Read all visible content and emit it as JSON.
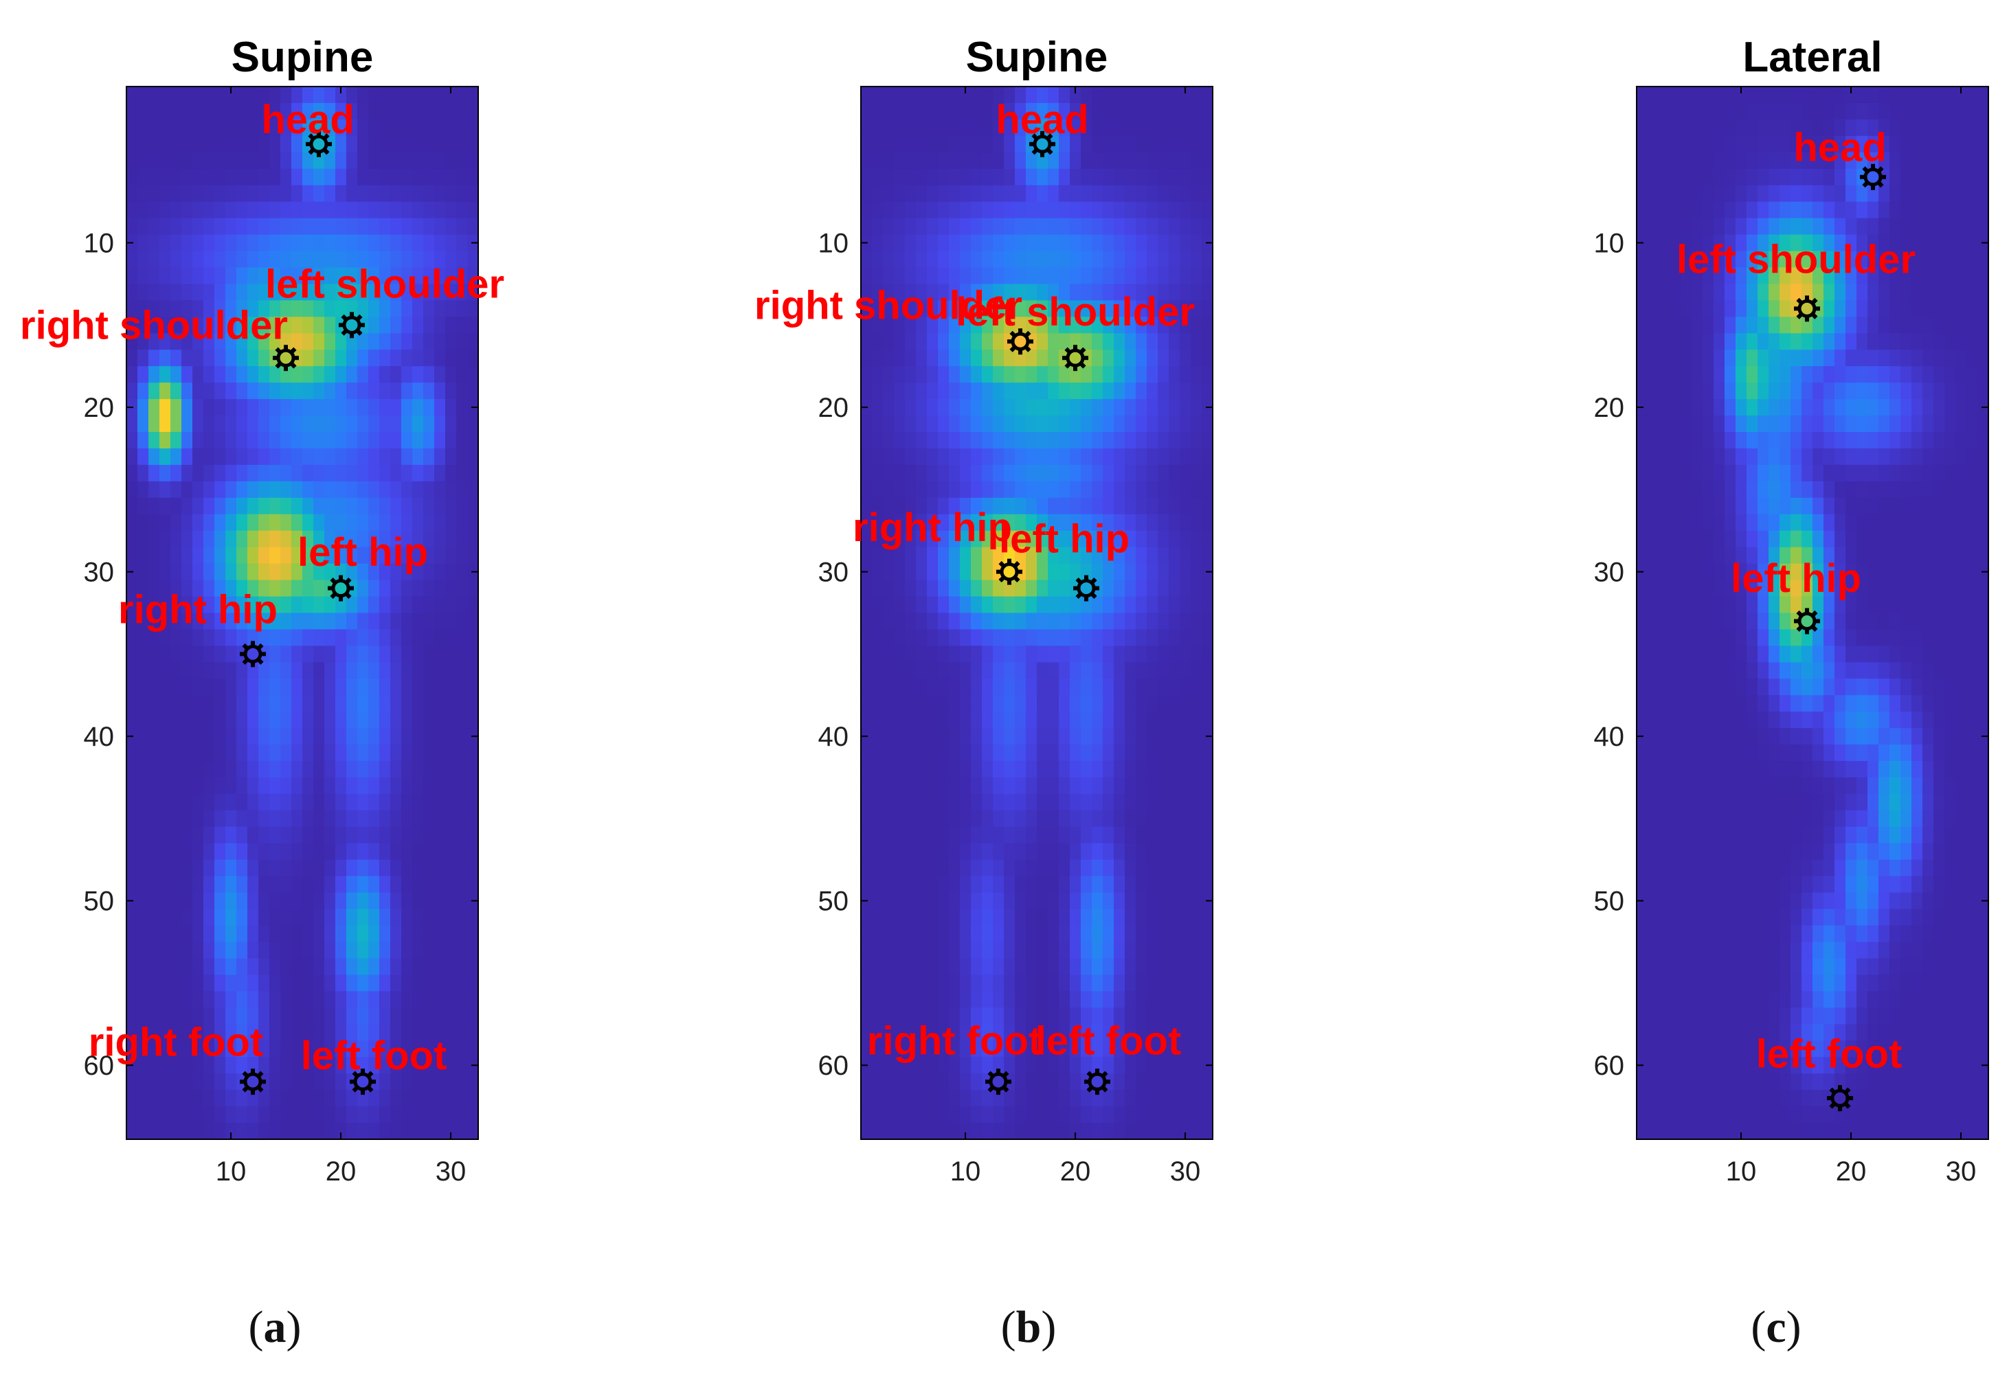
{
  "colors": {
    "low": "#3d26a8",
    "marker": "#000000",
    "label": "#ff0000",
    "axis": "#000000",
    "tick_text": "#1f1f1f"
  },
  "captions": {
    "a": "a",
    "b": "b",
    "c": "c"
  },
  "chart_data": [
    {
      "type": "heatmap",
      "title": "Supine",
      "xlim": [
        0.5,
        32.5
      ],
      "ylim": [
        0.5,
        64.5
      ],
      "y_direction": "reverse",
      "xticks": [
        10,
        20,
        30
      ],
      "yticks": [
        10,
        20,
        30,
        40,
        50,
        60
      ],
      "grid": false,
      "colormap": "parula",
      "pressure_regions": [
        {
          "x": 18,
          "y": 4,
          "sx": 1.6,
          "sy": 2.2,
          "v": 0.45
        },
        {
          "x": 18,
          "y": 11,
          "sx": 8,
          "sy": 2.2,
          "v": 0.3
        },
        {
          "x": 16,
          "y": 16,
          "sx": 4,
          "sy": 2.5,
          "v": 0.85
        },
        {
          "x": 20,
          "y": 14,
          "sx": 4,
          "sy": 2.5,
          "v": 0.5
        },
        {
          "x": 13,
          "y": 14,
          "sx": 3,
          "sy": 3,
          "v": 0.4
        },
        {
          "x": 4,
          "y": 20.5,
          "sx": 1.3,
          "sy": 2,
          "v": 0.95
        },
        {
          "x": 27,
          "y": 21,
          "sx": 1.5,
          "sy": 2.2,
          "v": 0.35
        },
        {
          "x": 18,
          "y": 21,
          "sx": 5,
          "sy": 2.5,
          "v": 0.3
        },
        {
          "x": 14,
          "y": 29,
          "sx": 3.5,
          "sy": 3,
          "v": 0.9
        },
        {
          "x": 18,
          "y": 31,
          "sx": 3.5,
          "sy": 1.8,
          "v": 0.6
        },
        {
          "x": 19,
          "y": 27,
          "sx": 5,
          "sy": 3,
          "v": 0.3
        },
        {
          "x": 14,
          "y": 38,
          "sx": 2,
          "sy": 5,
          "v": 0.22
        },
        {
          "x": 22,
          "y": 38,
          "sx": 2,
          "sy": 5,
          "v": 0.25
        },
        {
          "x": 10,
          "y": 51,
          "sx": 1.3,
          "sy": 3.5,
          "v": 0.33
        },
        {
          "x": 22,
          "y": 52,
          "sx": 1.6,
          "sy": 3,
          "v": 0.45
        },
        {
          "x": 11,
          "y": 57,
          "sx": 1.5,
          "sy": 3.5,
          "v": 0.2
        },
        {
          "x": 22,
          "y": 57,
          "sx": 1.5,
          "sy": 3.5,
          "v": 0.2
        }
      ],
      "points": [
        {
          "label": "head",
          "x": 18,
          "y": 4,
          "label_x": 17,
          "label_y": 2.5
        },
        {
          "label": "left shoulder",
          "x": 21,
          "y": 15,
          "label_x": 24,
          "label_y": 12.5
        },
        {
          "label": "right shoulder",
          "x": 15,
          "y": 17,
          "label_x": 3,
          "label_y": 15
        },
        {
          "label": "left hip",
          "x": 20,
          "y": 31,
          "label_x": 22,
          "label_y": 28.8
        },
        {
          "label": "right hip",
          "x": 12,
          "y": 35,
          "label_x": 7,
          "label_y": 32.3
        },
        {
          "label": "right foot",
          "x": 12,
          "y": 61,
          "label_x": 5,
          "label_y": 58.6
        },
        {
          "label": "left foot",
          "x": 22,
          "y": 61,
          "label_x": 23,
          "label_y": 59.4
        }
      ]
    },
    {
      "type": "heatmap",
      "title": "Supine",
      "xlim": [
        0.5,
        32.5
      ],
      "ylim": [
        0.5,
        64.5
      ],
      "y_direction": "reverse",
      "xticks": [
        10,
        20,
        30
      ],
      "yticks": [
        10,
        20,
        30,
        40,
        50,
        60
      ],
      "grid": false,
      "colormap": "parula",
      "pressure_regions": [
        {
          "x": 17,
          "y": 4,
          "sx": 1.6,
          "sy": 2.2,
          "v": 0.4
        },
        {
          "x": 17,
          "y": 11,
          "sx": 7,
          "sy": 2.5,
          "v": 0.3
        },
        {
          "x": 15,
          "y": 16,
          "sx": 4,
          "sy": 2.5,
          "v": 0.88
        },
        {
          "x": 20,
          "y": 17,
          "sx": 4,
          "sy": 2.5,
          "v": 0.75
        },
        {
          "x": 17,
          "y": 20,
          "sx": 6,
          "sy": 2.5,
          "v": 0.45
        },
        {
          "x": 17,
          "y": 24,
          "sx": 5,
          "sy": 2,
          "v": 0.3
        },
        {
          "x": 14,
          "y": 29.5,
          "sx": 3.5,
          "sy": 2.5,
          "v": 0.95
        },
        {
          "x": 18,
          "y": 30,
          "sx": 5,
          "sy": 3,
          "v": 0.5
        },
        {
          "x": 14,
          "y": 38,
          "sx": 2,
          "sy": 5,
          "v": 0.2
        },
        {
          "x": 21,
          "y": 38,
          "sx": 2,
          "sy": 5,
          "v": 0.2
        },
        {
          "x": 22,
          "y": 52,
          "sx": 1.5,
          "sy": 4,
          "v": 0.3
        },
        {
          "x": 12,
          "y": 52,
          "sx": 1.5,
          "sy": 4,
          "v": 0.15
        },
        {
          "x": 12,
          "y": 58,
          "sx": 1.5,
          "sy": 3,
          "v": 0.15
        },
        {
          "x": 22,
          "y": 58,
          "sx": 1.5,
          "sy": 3,
          "v": 0.15
        }
      ],
      "points": [
        {
          "label": "head",
          "x": 17,
          "y": 4,
          "label_x": 17,
          "label_y": 2.5
        },
        {
          "label": "right shoulder",
          "x": 15,
          "y": 16,
          "label_x": 3,
          "label_y": 13.8
        },
        {
          "label": "left shoulder",
          "x": 20,
          "y": 17,
          "label_x": 20,
          "label_y": 14.2
        },
        {
          "label": "right hip",
          "x": 14,
          "y": 30,
          "label_x": 7,
          "label_y": 27.3
        },
        {
          "label": "left hip",
          "x": 21,
          "y": 31,
          "label_x": 19,
          "label_y": 28
        },
        {
          "label": "right foot",
          "x": 13,
          "y": 61,
          "label_x": 9,
          "label_y": 58.5
        },
        {
          "label": "left foot",
          "x": 22,
          "y": 61,
          "label_x": 23,
          "label_y": 58.5
        }
      ]
    },
    {
      "type": "heatmap",
      "title": "Lateral",
      "xlim": [
        0.5,
        32.5
      ],
      "ylim": [
        0.5,
        64.5
      ],
      "y_direction": "reverse",
      "xticks": [
        10,
        20,
        30
      ],
      "yticks": [
        10,
        20,
        30,
        40,
        50,
        60
      ],
      "grid": false,
      "colormap": "parula",
      "pressure_regions": [
        {
          "x": 21,
          "y": 6,
          "sx": 1.3,
          "sy": 1.8,
          "v": 0.25
        },
        {
          "x": 15,
          "y": 13,
          "sx": 3,
          "sy": 3,
          "v": 0.88
        },
        {
          "x": 11,
          "y": 18,
          "sx": 1.5,
          "sy": 3,
          "v": 0.6
        },
        {
          "x": 13,
          "y": 17,
          "sx": 2.5,
          "sy": 5,
          "v": 0.4
        },
        {
          "x": 21,
          "y": 20,
          "sx": 3.5,
          "sy": 2,
          "v": 0.28
        },
        {
          "x": 13,
          "y": 25,
          "sx": 2,
          "sy": 3.5,
          "v": 0.3
        },
        {
          "x": 15,
          "y": 31,
          "sx": 1.8,
          "sy": 3.5,
          "v": 0.85
        },
        {
          "x": 16,
          "y": 36,
          "sx": 2,
          "sy": 2,
          "v": 0.35
        },
        {
          "x": 21,
          "y": 39,
          "sx": 2.5,
          "sy": 2,
          "v": 0.3
        },
        {
          "x": 24,
          "y": 44,
          "sx": 1.6,
          "sy": 3.5,
          "v": 0.4
        },
        {
          "x": 21,
          "y": 49,
          "sx": 1.6,
          "sy": 3,
          "v": 0.3
        },
        {
          "x": 18,
          "y": 54,
          "sx": 1.6,
          "sy": 3,
          "v": 0.3
        },
        {
          "x": 17,
          "y": 58,
          "sx": 1.5,
          "sy": 2,
          "v": 0.2
        }
      ],
      "points": [
        {
          "label": "head",
          "x": 22,
          "y": 6,
          "label_x": 19,
          "label_y": 4.2
        },
        {
          "label": "left shoulder",
          "x": 16,
          "y": 14,
          "label_x": 15,
          "label_y": 11
        },
        {
          "label": "left hip",
          "x": 16,
          "y": 33,
          "label_x": 15,
          "label_y": 30.4
        },
        {
          "label": "left foot",
          "x": 19,
          "y": 62,
          "label_x": 18,
          "label_y": 59.3
        }
      ]
    }
  ]
}
